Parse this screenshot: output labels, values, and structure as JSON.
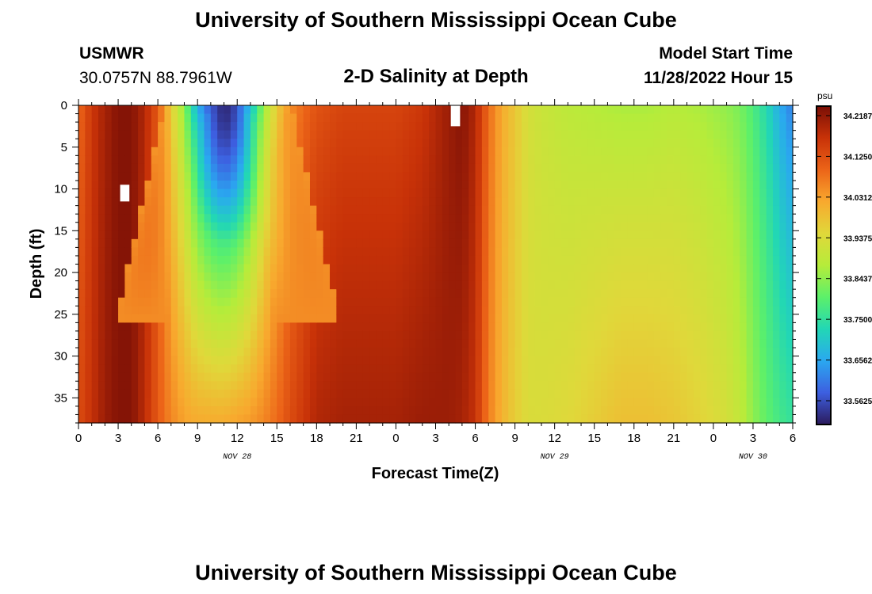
{
  "page": {
    "title_top": "University of Southern Mississippi Ocean Cube",
    "title_bottom": "University of Southern Mississippi Ocean Cube",
    "station": "USMWR",
    "coords": "30.0757N  88.7961W",
    "plot_title": "2-D Salinity at Depth",
    "model_label": "Model Start Time",
    "model_time": "11/28/2022 Hour 15"
  },
  "chart_data": {
    "type": "heatmap",
    "title": "2-D Salinity at Depth",
    "xlabel": "Forecast Time(Z)",
    "ylabel": "Depth (ft)",
    "x_tick_labels": [
      "0",
      "3",
      "6",
      "9",
      "12",
      "15",
      "18",
      "21",
      "0",
      "3",
      "6",
      "9",
      "12",
      "15",
      "18",
      "21",
      "0",
      "3",
      "6"
    ],
    "x_hours": [
      0,
      3,
      6,
      9,
      12,
      15,
      18,
      21,
      24,
      27,
      30,
      33,
      36,
      39,
      42,
      45,
      48,
      51,
      54
    ],
    "xlim": [
      0,
      54
    ],
    "day_labels": [
      {
        "text": "NOV 28",
        "hour": 12
      },
      {
        "text": "NOV 29",
        "hour": 36
      },
      {
        "text": "NOV 30",
        "hour": 51
      }
    ],
    "y_ticks": [
      0,
      5,
      10,
      15,
      20,
      25,
      30,
      35
    ],
    "ylim": [
      0,
      38
    ],
    "y_inverted": true,
    "colorbar": {
      "unit": "psu",
      "min": 33.53,
      "max": 34.25,
      "labels": [
        "34.2187",
        "34.1250",
        "34.0312",
        "33.9375",
        "33.8437",
        "33.7500",
        "33.6562",
        "33.5625"
      ],
      "colors": [
        "#2b1a5c",
        "#3d5fe0",
        "#2aa8f0",
        "#22d7b5",
        "#5cf06a",
        "#b6ec3a",
        "#e0d83a",
        "#f8a92e",
        "#ec6418",
        "#c83208",
        "#7a0f06"
      ]
    },
    "missing_cells": [
      {
        "hour": 3.5,
        "depth_from": 9.5,
        "depth_to": 11.5
      },
      {
        "hour": 4.5,
        "depth_from": 0.0,
        "depth_to": 2.5,
        "day_offset": 24
      }
    ],
    "profiles": [
      {
        "hour": 0,
        "top": 34.1,
        "bottom": 34.14
      },
      {
        "hour": 1,
        "top": 34.17,
        "bottom": 34.18
      },
      {
        "hour": 2,
        "top": 34.21,
        "bottom": 34.22
      },
      {
        "hour": 3,
        "top": 34.24,
        "bottom": 34.24
      },
      {
        "hour": 4,
        "top": 34.24,
        "bottom": 34.24
      },
      {
        "hour": 5,
        "top": 34.2,
        "bottom": 34.19
      },
      {
        "hour": 6,
        "top": 34.12,
        "bottom": 34.12
      },
      {
        "hour": 7,
        "top": 33.98,
        "bottom": 34.07
      },
      {
        "hour": 8,
        "top": 33.85,
        "bottom": 34.04
      },
      {
        "hour": 9,
        "top": 33.68,
        "bottom": 34.03
      },
      {
        "hour": 10,
        "top": 33.58,
        "bottom": 34.03
      },
      {
        "hour": 11,
        "top": 33.54,
        "bottom": 34.03
      },
      {
        "hour": 12,
        "top": 33.58,
        "bottom": 34.04
      },
      {
        "hour": 13,
        "top": 33.7,
        "bottom": 34.05
      },
      {
        "hour": 14,
        "top": 33.86,
        "bottom": 34.07
      },
      {
        "hour": 15,
        "top": 33.98,
        "bottom": 34.1
      },
      {
        "hour": 16,
        "top": 34.06,
        "bottom": 34.14
      },
      {
        "hour": 17,
        "top": 34.1,
        "bottom": 34.17
      },
      {
        "hour": 18,
        "top": 34.13,
        "bottom": 34.2
      },
      {
        "hour": 20,
        "top": 34.15,
        "bottom": 34.21
      },
      {
        "hour": 22,
        "top": 34.15,
        "bottom": 34.21
      },
      {
        "hour": 24,
        "top": 34.15,
        "bottom": 34.21
      },
      {
        "hour": 26,
        "top": 34.17,
        "bottom": 34.22
      },
      {
        "hour": 28,
        "top": 34.22,
        "bottom": 34.22
      },
      {
        "hour": 29,
        "top": 34.24,
        "bottom": 34.21
      },
      {
        "hour": 30,
        "top": 34.2,
        "bottom": 34.18
      },
      {
        "hour": 31,
        "top": 34.1,
        "bottom": 34.08
      },
      {
        "hour": 32,
        "top": 34.03,
        "bottom": 34.02
      },
      {
        "hour": 33,
        "top": 33.99,
        "bottom": 33.98
      },
      {
        "hour": 34,
        "top": 33.94,
        "bottom": 33.95
      },
      {
        "hour": 35,
        "top": 33.92,
        "bottom": 33.95
      },
      {
        "hour": 37,
        "top": 33.9,
        "bottom": 33.96
      },
      {
        "hour": 39,
        "top": 33.89,
        "bottom": 33.98
      },
      {
        "hour": 41,
        "top": 33.88,
        "bottom": 34.0
      },
      {
        "hour": 43,
        "top": 33.88,
        "bottom": 34.0
      },
      {
        "hour": 45,
        "top": 33.89,
        "bottom": 33.99
      },
      {
        "hour": 47,
        "top": 33.88,
        "bottom": 33.97
      },
      {
        "hour": 49,
        "top": 33.86,
        "bottom": 33.94
      },
      {
        "hour": 50,
        "top": 33.84,
        "bottom": 33.91
      },
      {
        "hour": 51,
        "top": 33.8,
        "bottom": 33.86
      },
      {
        "hour": 52,
        "top": 33.75,
        "bottom": 33.82
      },
      {
        "hour": 53,
        "top": 33.68,
        "bottom": 33.79
      },
      {
        "hour": 54,
        "top": 33.63,
        "bottom": 33.77
      }
    ],
    "plume": {
      "center_hour": 11.3,
      "width_top": 4.8,
      "width_bottom": 8.5,
      "depth_extent": 26
    }
  }
}
